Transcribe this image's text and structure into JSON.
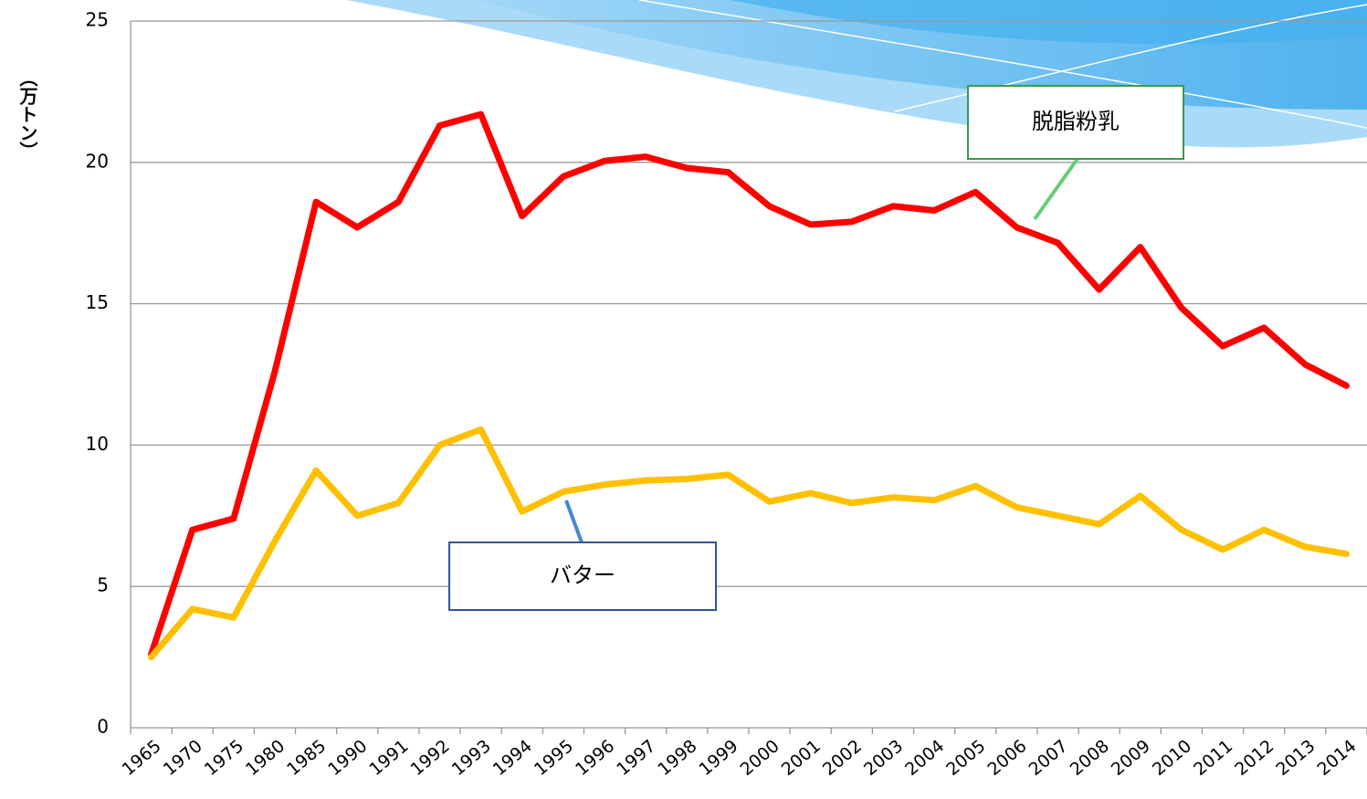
{
  "chart_data": {
    "type": "line",
    "y_label": "（万トン）",
    "categories": [
      "1965",
      "1970",
      "1975",
      "1980",
      "1985",
      "1990",
      "1991",
      "1992",
      "1993",
      "1994",
      "1995",
      "1996",
      "1997",
      "1998",
      "1999",
      "2000",
      "2001",
      "2002",
      "2003",
      "2004",
      "2005",
      "2006",
      "2007",
      "2008",
      "2009",
      "2010",
      "2011",
      "2012",
      "2013",
      "2014"
    ],
    "series": [
      {
        "name": "脱脂粉乳",
        "color": "#ff0000",
        "values": [
          2.6,
          7.0,
          7.4,
          12.6,
          18.6,
          17.7,
          18.6,
          21.3,
          21.7,
          18.1,
          19.5,
          20.05,
          20.2,
          19.8,
          19.65,
          18.45,
          17.8,
          17.9,
          18.45,
          18.3,
          18.95,
          17.7,
          17.15,
          15.5,
          17.0,
          14.85,
          13.5,
          14.15,
          12.85,
          12.1
        ]
      },
      {
        "name": "バター",
        "color": "#ffc000",
        "values": [
          2.5,
          4.2,
          3.9,
          6.6,
          9.1,
          7.5,
          7.95,
          10.0,
          10.55,
          7.65,
          8.35,
          8.6,
          8.75,
          8.8,
          8.95,
          8.0,
          8.3,
          7.95,
          8.15,
          8.05,
          8.55,
          7.8,
          7.5,
          7.2,
          8.2,
          7.0,
          6.3,
          7.0,
          6.4,
          6.15
        ]
      }
    ],
    "ylim": [
      0,
      25
    ],
    "yticks": [
      0,
      5,
      10,
      15,
      20,
      25
    ],
    "grid": true
  }
}
